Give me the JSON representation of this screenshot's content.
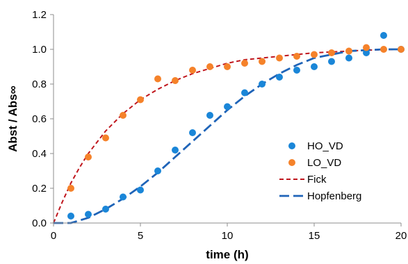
{
  "chart_data": {
    "type": "scatter",
    "title": "",
    "xlabel": "time (h)",
    "ylabel": "Abst / Abs∞",
    "xlim": [
      0,
      20
    ],
    "ylim": [
      0,
      1.2
    ],
    "x_ticks": [
      0,
      5,
      10,
      15,
      20
    ],
    "y_ticks": [
      0.0,
      0.2,
      0.4,
      0.6,
      0.8,
      1.0,
      1.2
    ],
    "x_tick_labels": [
      "0",
      "5",
      "10",
      "15",
      "20"
    ],
    "y_tick_labels": [
      "0.0",
      "0.2",
      "0.4",
      "0.6",
      "0.8",
      "1.0",
      "1.2"
    ],
    "grid": false,
    "legend_position": "center-right",
    "series": [
      {
        "name": "HO_VD",
        "kind": "points",
        "color": "#1a86d8",
        "x": [
          1,
          2,
          3,
          4,
          5,
          6,
          7,
          8,
          9,
          10,
          11,
          12,
          13,
          14,
          15,
          16,
          17,
          18,
          19,
          20
        ],
        "y": [
          0.04,
          0.05,
          0.08,
          0.15,
          0.19,
          0.3,
          0.42,
          0.52,
          0.62,
          0.67,
          0.75,
          0.8,
          0.84,
          0.88,
          0.9,
          0.93,
          0.95,
          0.98,
          1.08,
          1.0
        ]
      },
      {
        "name": "LO_VD",
        "kind": "points",
        "color": "#f5822a",
        "x": [
          1,
          2,
          3,
          4,
          5,
          6,
          7,
          8,
          9,
          10,
          11,
          12,
          13,
          14,
          15,
          16,
          17,
          18,
          19,
          20
        ],
        "y": [
          0.2,
          0.38,
          0.49,
          0.62,
          0.71,
          0.83,
          0.82,
          0.88,
          0.9,
          0.9,
          0.92,
          0.93,
          0.95,
          0.96,
          0.97,
          0.98,
          0.99,
          1.01,
          1.0,
          1.0
        ]
      },
      {
        "name": "Fick",
        "kind": "line",
        "dash": "short",
        "color": "#c0161d",
        "x": [
          0,
          0.5,
          1,
          1.5,
          2,
          3,
          4,
          5,
          6,
          7,
          8,
          9,
          10,
          11,
          12,
          13,
          14,
          15,
          16,
          17,
          18,
          19,
          20
        ],
        "y": [
          0.0,
          0.12,
          0.23,
          0.32,
          0.4,
          0.53,
          0.63,
          0.71,
          0.77,
          0.82,
          0.86,
          0.89,
          0.92,
          0.94,
          0.95,
          0.96,
          0.97,
          0.98,
          0.985,
          0.99,
          0.995,
          0.998,
          1.0
        ]
      },
      {
        "name": "Hopfenberg",
        "kind": "line",
        "dash": "long",
        "color": "#1f64b8",
        "x": [
          0,
          1,
          2,
          3,
          4,
          5,
          6,
          7,
          8,
          9,
          10,
          11,
          12,
          13,
          14,
          15,
          16,
          17,
          18,
          19,
          20
        ],
        "y": [
          0.0,
          0.0,
          0.03,
          0.08,
          0.14,
          0.21,
          0.29,
          0.38,
          0.47,
          0.56,
          0.65,
          0.73,
          0.8,
          0.86,
          0.91,
          0.95,
          0.97,
          0.99,
          0.995,
          1.0,
          1.0
        ]
      }
    ]
  }
}
